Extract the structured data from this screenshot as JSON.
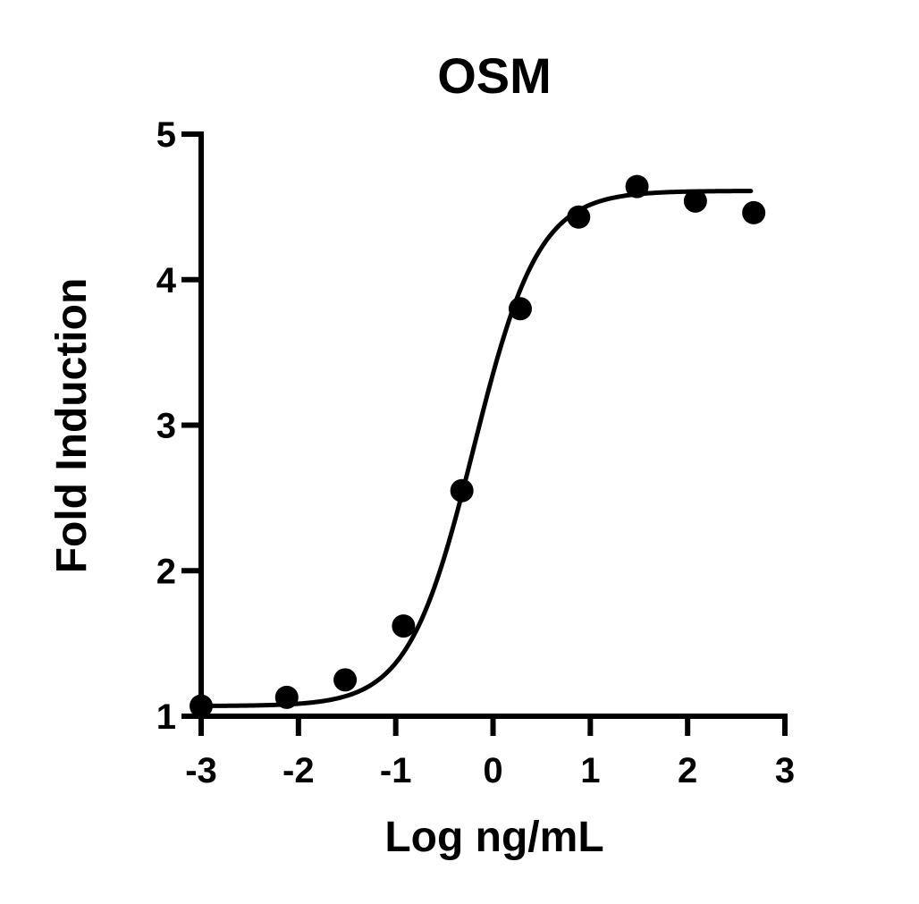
{
  "chart_data": {
    "type": "scatter",
    "title": "OSM",
    "xlabel": "Log ng/mL",
    "ylabel": "Fold Induction",
    "xlim": [
      -3,
      3
    ],
    "ylim": [
      1,
      5
    ],
    "xticks": [
      -3,
      -2,
      -1,
      0,
      1,
      2,
      3
    ],
    "yticks": [
      1,
      2,
      3,
      4,
      5
    ],
    "xtick_labels": [
      "-3",
      "-2",
      "-1",
      "0",
      "1",
      "2",
      "3"
    ],
    "ytick_labels": [
      "1",
      "2",
      "3",
      "4",
      "5"
    ],
    "grid": false,
    "legend": "none",
    "colors": {
      "points": "#000000",
      "curve": "#000000",
      "axes": "#000000"
    },
    "series": [
      {
        "x": [
          -3.0,
          -2.12,
          -1.52,
          -0.92,
          -0.32,
          0.28,
          0.88,
          1.48,
          2.08,
          2.68
        ],
        "y": [
          1.07,
          1.13,
          1.25,
          1.62,
          2.55,
          3.8,
          4.43,
          4.64,
          4.54,
          4.46
        ]
      }
    ],
    "fit_curve": {
      "model": "four-parameter logistic",
      "bottom": 1.07,
      "top": 4.61,
      "log_ec50": -0.2,
      "hill_slope": 1.3,
      "x_range": [
        -3.0,
        2.65
      ]
    }
  }
}
